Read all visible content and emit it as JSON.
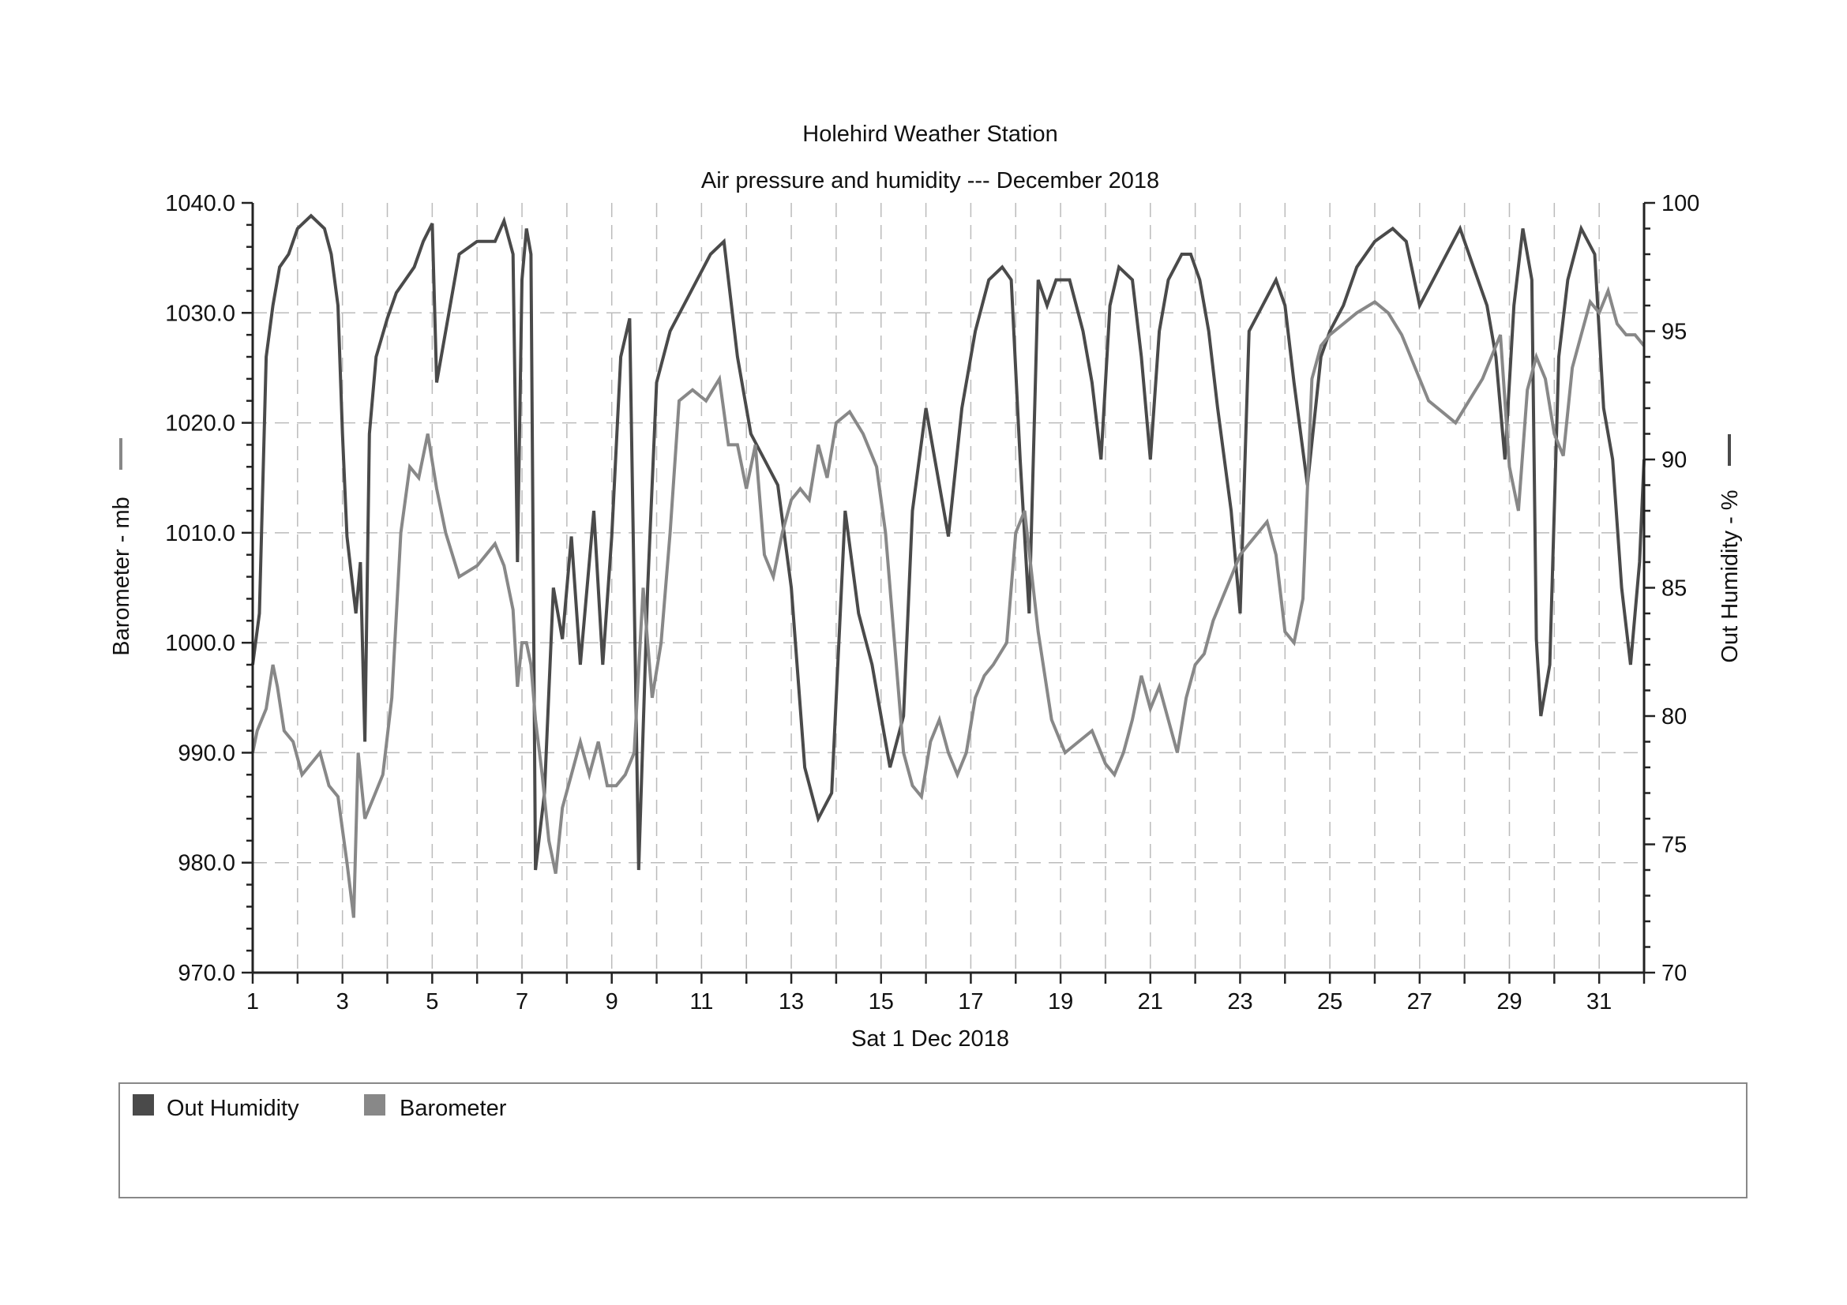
{
  "chart_data": {
    "type": "line",
    "title": "Holehird Weather Station",
    "subtitle": "Air pressure and humidity --- December 2018",
    "xlabel": "Sat 1 Dec 2018",
    "ylabel_left": "Barometer - mb",
    "ylabel_right": "Out Humidity - %",
    "xlim": [
      1,
      32
    ],
    "ylim_left": [
      970,
      1040
    ],
    "ylim_right": [
      70,
      100
    ],
    "x_ticks": [
      1,
      3,
      5,
      7,
      9,
      11,
      13,
      15,
      17,
      19,
      21,
      23,
      25,
      27,
      29,
      31
    ],
    "y_ticks_left": [
      "970.0",
      "980.0",
      "990.0",
      "1000.0",
      "1010.0",
      "1020.0",
      "1030.0",
      "1040.0"
    ],
    "y_ticks_right": [
      "70",
      "75",
      "80",
      "85",
      "90",
      "95",
      "100"
    ],
    "grid": true,
    "legend_position": "bottom",
    "series": [
      {
        "name": "Out Humidity",
        "axis": "right",
        "color": "#4a4a4a",
        "x": [
          1.0,
          1.15,
          1.3,
          1.45,
          1.6,
          1.8,
          2.0,
          2.3,
          2.6,
          2.75,
          2.9,
          3.0,
          3.1,
          3.2,
          3.3,
          3.4,
          3.5,
          3.6,
          3.75,
          4.0,
          4.2,
          4.4,
          4.6,
          4.8,
          5.0,
          5.1,
          5.3,
          5.6,
          6.0,
          6.4,
          6.6,
          6.8,
          6.9,
          7.0,
          7.1,
          7.2,
          7.3,
          7.5,
          7.7,
          7.9,
          8.1,
          8.3,
          8.6,
          8.8,
          9.0,
          9.2,
          9.4,
          9.6,
          9.8,
          10.0,
          10.3,
          10.6,
          10.9,
          11.2,
          11.5,
          11.8,
          12.1,
          12.4,
          12.7,
          13.0,
          13.3,
          13.6,
          13.9,
          14.2,
          14.5,
          14.8,
          15.0,
          15.2,
          15.5,
          15.7,
          16.0,
          16.2,
          16.5,
          16.8,
          17.1,
          17.4,
          17.7,
          17.9,
          18.1,
          18.3,
          18.5,
          18.7,
          18.9,
          19.2,
          19.5,
          19.7,
          19.9,
          20.1,
          20.3,
          20.6,
          20.8,
          21.0,
          21.2,
          21.4,
          21.7,
          21.9,
          22.1,
          22.3,
          22.5,
          22.8,
          23.0,
          23.2,
          23.5,
          23.8,
          24.0,
          24.2,
          24.5,
          24.8,
          25.0,
          25.3,
          25.6,
          26.0,
          26.4,
          26.7,
          27.0,
          27.3,
          27.6,
          27.9,
          28.2,
          28.5,
          28.7,
          28.9,
          29.1,
          29.3,
          29.5,
          29.6,
          29.7,
          29.9,
          30.1,
          30.3,
          30.6,
          30.9,
          31.1,
          31.3,
          31.5,
          31.7,
          31.8,
          31.9,
          32.0
        ],
        "y": [
          82,
          84,
          94,
          96,
          97.5,
          98,
          99,
          99.5,
          99,
          98,
          96,
          91,
          87,
          85.5,
          84,
          86,
          79,
          91,
          94,
          95.5,
          96.5,
          97,
          97.5,
          98.5,
          99.2,
          93,
          95,
          98,
          98.5,
          98.5,
          99.3,
          98,
          86,
          97,
          99,
          98,
          74,
          77,
          85,
          83,
          87,
          82,
          88,
          82,
          87,
          94,
          95.5,
          74,
          85,
          93,
          95,
          96,
          97,
          98,
          98.5,
          94,
          91,
          90,
          89,
          85,
          78,
          76,
          77,
          88,
          84,
          82,
          80,
          78,
          80,
          88,
          92,
          90,
          87,
          92,
          95,
          97,
          97.5,
          97,
          90,
          84,
          97,
          96,
          97,
          97,
          95,
          93,
          90,
          96,
          97.5,
          97,
          94,
          90,
          95,
          97,
          98,
          98,
          97,
          95,
          92,
          88,
          84,
          95,
          96,
          97,
          96,
          93,
          89,
          94,
          95,
          96,
          97.5,
          98.5,
          99,
          98.5,
          96,
          97,
          98,
          99,
          97.5,
          96,
          94,
          90,
          96,
          99,
          97,
          83,
          80,
          82,
          94,
          97,
          99,
          98,
          92,
          90,
          85,
          82,
          84,
          86,
          90
        ]
      },
      {
        "name": "Barometer",
        "axis": "left",
        "color": "#888888",
        "x": [
          1.0,
          1.1,
          1.3,
          1.45,
          1.55,
          1.7,
          1.9,
          2.1,
          2.3,
          2.5,
          2.7,
          2.9,
          3.1,
          3.25,
          3.35,
          3.5,
          3.7,
          3.9,
          4.1,
          4.3,
          4.5,
          4.7,
          4.9,
          5.1,
          5.3,
          5.6,
          6.0,
          6.2,
          6.4,
          6.6,
          6.8,
          6.9,
          7.0,
          7.1,
          7.2,
          7.3,
          7.45,
          7.6,
          7.75,
          7.9,
          8.1,
          8.3,
          8.5,
          8.7,
          8.9,
          9.1,
          9.3,
          9.5,
          9.7,
          9.9,
          10.1,
          10.3,
          10.5,
          10.8,
          11.1,
          11.4,
          11.6,
          11.8,
          12.0,
          12.2,
          12.4,
          12.6,
          12.8,
          13.0,
          13.2,
          13.4,
          13.6,
          13.8,
          14.0,
          14.3,
          14.6,
          14.9,
          15.1,
          15.3,
          15.5,
          15.7,
          15.9,
          16.1,
          16.3,
          16.5,
          16.7,
          16.9,
          17.1,
          17.3,
          17.5,
          17.8,
          18.0,
          18.2,
          18.5,
          18.8,
          19.1,
          19.4,
          19.7,
          20.0,
          20.2,
          20.4,
          20.6,
          20.8,
          21.0,
          21.2,
          21.4,
          21.6,
          21.8,
          22.0,
          22.2,
          22.4,
          22.6,
          22.8,
          23.0,
          23.2,
          23.4,
          23.6,
          23.8,
          24.0,
          24.2,
          24.4,
          24.6,
          24.8,
          25.0,
          25.3,
          25.6,
          26.0,
          26.3,
          26.6,
          26.9,
          27.2,
          27.5,
          27.8,
          28.1,
          28.4,
          28.6,
          28.8,
          29.0,
          29.2,
          29.4,
          29.6,
          29.8,
          30.0,
          30.2,
          30.4,
          30.6,
          30.8,
          31.0,
          31.2,
          31.4,
          31.6,
          31.8,
          32.0
        ],
        "y": [
          990,
          992,
          994,
          998,
          996,
          992,
          991,
          988,
          989,
          990,
          987,
          986,
          980,
          975,
          990,
          984,
          986,
          988,
          995,
          1010,
          1016,
          1015,
          1019,
          1014,
          1010,
          1006,
          1007,
          1008,
          1009,
          1007,
          1003,
          996,
          1000,
          1000,
          998,
          993,
          988,
          982,
          979,
          985,
          988,
          991,
          988,
          991,
          987,
          987,
          988,
          990,
          1005,
          995,
          1000,
          1010,
          1022,
          1023,
          1022,
          1024,
          1018,
          1018,
          1014,
          1018,
          1008,
          1006,
          1010,
          1013,
          1014,
          1013,
          1018,
          1015,
          1020,
          1021,
          1019,
          1016,
          1010,
          1000,
          990,
          987,
          986,
          991,
          993,
          990,
          988,
          990,
          995,
          997,
          998,
          1000,
          1010,
          1012,
          1001,
          993,
          990,
          991,
          992,
          989,
          988,
          990,
          993,
          997,
          994,
          996,
          993,
          990,
          995,
          998,
          999,
          1002,
          1004,
          1006,
          1008,
          1009,
          1010,
          1011,
          1008,
          1001,
          1000,
          1004,
          1024,
          1027,
          1028,
          1029,
          1030,
          1031,
          1030,
          1028,
          1025,
          1022,
          1021,
          1020,
          1022,
          1024,
          1026,
          1028,
          1016,
          1012,
          1023,
          1026,
          1024,
          1019,
          1017,
          1025,
          1028,
          1031,
          1030,
          1032,
          1029,
          1028,
          1028,
          1027
        ]
      }
    ]
  },
  "legend": {
    "items": [
      {
        "label": "Out Humidity",
        "color": "#4a4a4a"
      },
      {
        "label": "Barometer",
        "color": "#888888"
      }
    ]
  }
}
